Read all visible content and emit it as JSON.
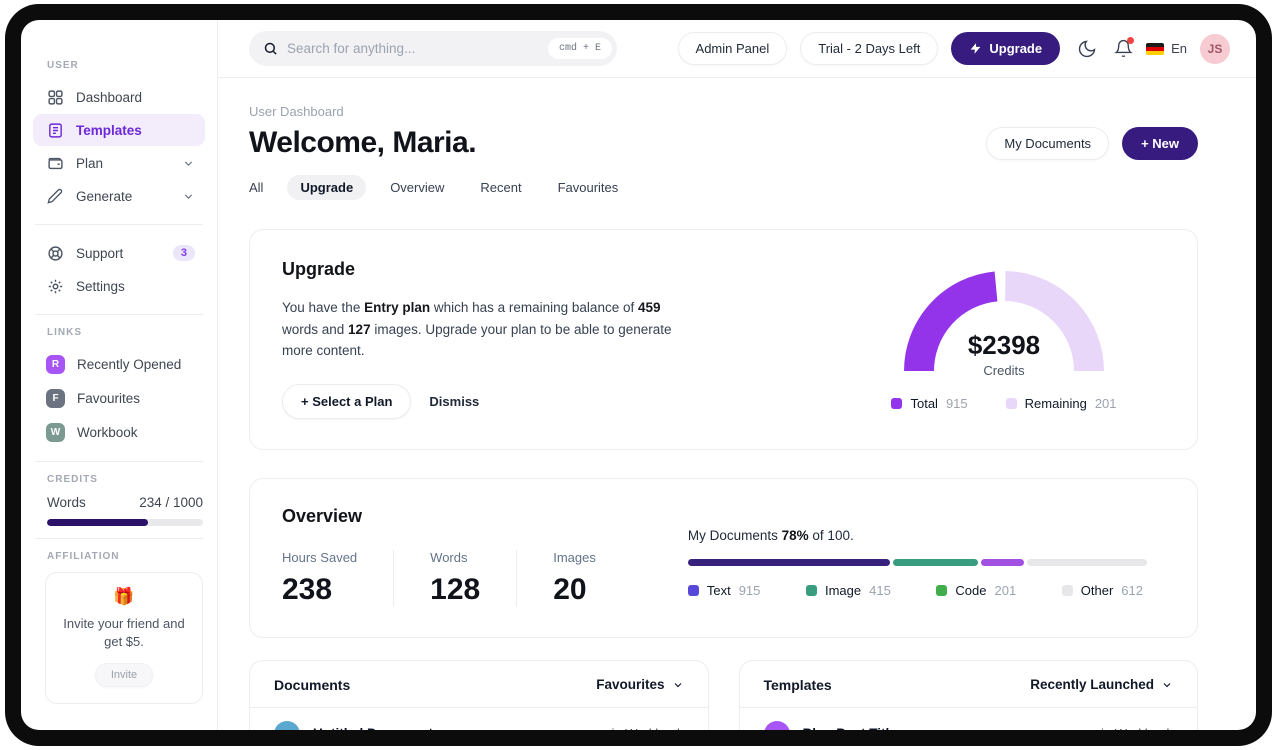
{
  "header": {
    "search_placeholder": "Search for anything...",
    "search_shortcut": "cmd + E",
    "admin_panel_label": "Admin Panel",
    "trial_label": "Trial - 2 Days Left",
    "upgrade_label": "Upgrade",
    "language_label": "En",
    "avatar_initials": "JS"
  },
  "sidebar": {
    "user_section_label": "USER",
    "user_items": [
      {
        "label": "Dashboard"
      },
      {
        "label": "Templates"
      },
      {
        "label": "Plan"
      },
      {
        "label": "Generate"
      }
    ],
    "support_label": "Support",
    "support_badge": "3",
    "settings_label": "Settings",
    "links_section_label": "LINKS",
    "link_items": [
      {
        "initial": "R",
        "label": "Recently Opened",
        "color": "#a855f7"
      },
      {
        "initial": "F",
        "label": "Favourites",
        "color": "#6b7280"
      },
      {
        "initial": "W",
        "label": "Workbook",
        "color": "#7c9a92"
      }
    ],
    "credits_section_label": "CREDITS",
    "credits_label": "Words",
    "credits_value": "234 / 1000",
    "credits_percent": 65,
    "affiliation_section_label": "AFFILIATION",
    "affiliation_emoji": "🎁",
    "affiliation_text": "Invite your friend and get $5.",
    "affiliation_button": "Invite"
  },
  "page": {
    "breadcrumb": "User Dashboard",
    "title": "Welcome, Maria.",
    "my_documents_button": "My Documents",
    "new_button": "+  New",
    "tabs": [
      {
        "label": "All"
      },
      {
        "label": "Upgrade"
      },
      {
        "label": "Overview"
      },
      {
        "label": "Recent"
      },
      {
        "label": "Favourites"
      }
    ]
  },
  "upgrade_card": {
    "title": "Upgrade",
    "body": {
      "t1": "You have the ",
      "b1": "Entry plan",
      "t2": " which has a remaining balance of ",
      "b2": "459",
      "t3": " words and ",
      "b3": "127",
      "t4": " images. Upgrade your plan to be able to generate more content."
    },
    "select_plan_button": "+ Select a Plan",
    "dismiss_button": "Dismiss"
  },
  "overview_card": {
    "title": "Overview",
    "stats": [
      {
        "label": "Hours Saved",
        "value": "238"
      },
      {
        "label": "Words",
        "value": "128"
      },
      {
        "label": "Images",
        "value": "20"
      }
    ],
    "sentence": {
      "t1": "My Documents ",
      "b1": "78%",
      "t2": " of 100."
    }
  },
  "documents_card": {
    "title": "Documents",
    "filter": "Favourites",
    "rows": [
      {
        "title": "Untitled Document",
        "location": "in Workbook",
        "icon_color": "#5aa7cf"
      }
    ]
  },
  "templates_card": {
    "title": "Templates",
    "filter": "Recently Launched",
    "rows": [
      {
        "title": "Blog Post Title",
        "location": "in Workbook",
        "icon_color": "#a855f7"
      }
    ]
  },
  "chart_data": [
    {
      "type": "pie",
      "shape": "semi-donut-gauge",
      "center_value": "$2398",
      "center_label": "Credits",
      "total_fraction": 0.47,
      "gap_fraction": 0.035,
      "legend_position": "bottom",
      "series": [
        {
          "name": "Total",
          "value": 915,
          "color": "#9333ea"
        },
        {
          "name": "Remaining",
          "value": 201,
          "color": "#e9d7fa"
        }
      ]
    },
    {
      "type": "bar",
      "shape": "stacked-progress",
      "title": "My Documents 78% of 100.",
      "percent": 78,
      "of_total": 100,
      "legend_position": "bottom",
      "series": [
        {
          "name": "Text",
          "value": 915,
          "swatch": "#5748d9",
          "bar_color": "#38217c",
          "width_pct": 44
        },
        {
          "name": "Image",
          "value": 415,
          "swatch": "#389c7f",
          "bar_color": "#389c7f",
          "width_pct": 18.5
        },
        {
          "name": "Code",
          "value": 201,
          "swatch": "#41ad4b",
          "bar_color": "#a24fe3",
          "width_pct": 9.5
        },
        {
          "name": "Other",
          "value": 612,
          "swatch": "#e7e7ea",
          "bar_color": "#e7e7ea",
          "width_pct": 28
        }
      ]
    }
  ]
}
